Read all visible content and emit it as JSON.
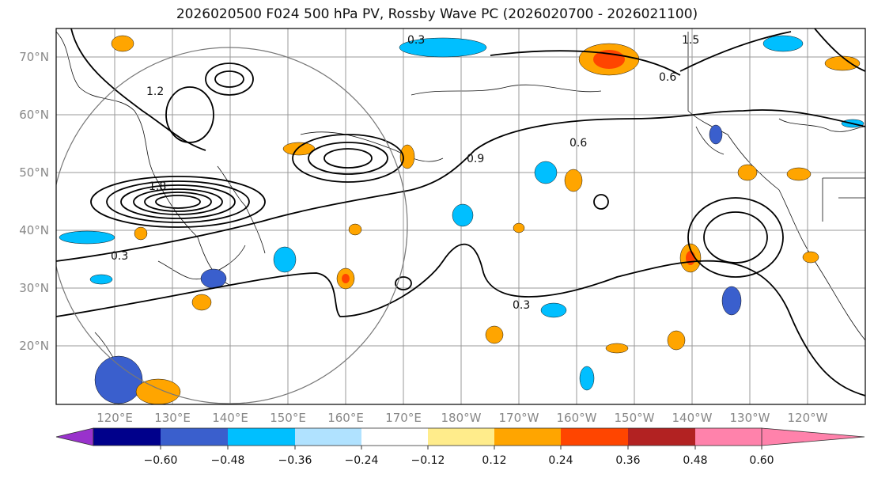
{
  "title": "2026020500 F024 500 hPa PV, Rossby Wave PC (2026020700 - 2026021100)",
  "lat_labels": [
    "70°N",
    "60°N",
    "50°N",
    "40°N",
    "30°N",
    "20°N"
  ],
  "lon_labels": [
    "120°E",
    "130°E",
    "140°E",
    "150°E",
    "160°E",
    "170°E",
    "180°W",
    "170°W",
    "160°W",
    "150°W",
    "140°W",
    "130°W",
    "120°W"
  ],
  "contour_labels": [
    "0.3",
    "0.6",
    "0.9",
    "1.2",
    "1.5",
    "1.8"
  ],
  "colorbar": {
    "ticks": [
      "−0.60",
      "−0.48",
      "−0.36",
      "−0.24",
      "−0.12",
      "0.12",
      "0.24",
      "0.36",
      "0.48",
      "0.60"
    ],
    "colors": [
      "#9932cc",
      "#00008b",
      "#3a5fcd",
      "#00bfff",
      "#b0e2ff",
      "#ffffff",
      "#ffec8b",
      "#ffa500",
      "#ff4500",
      "#b22222",
      "#ff82ab"
    ]
  }
}
